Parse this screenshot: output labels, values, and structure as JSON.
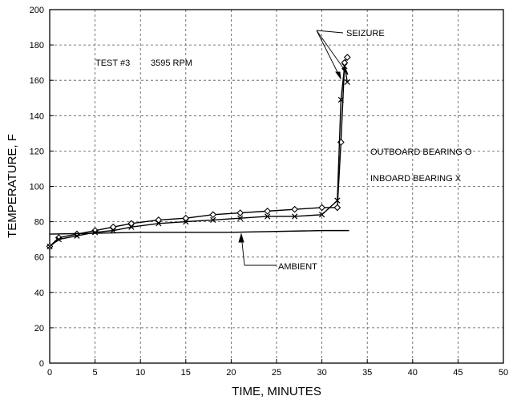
{
  "chart_data": {
    "type": "line",
    "title": "",
    "xlabel": "TIME, MINUTES",
    "ylabel": "TEMPERATURE, F",
    "xlim": [
      0,
      50
    ],
    "ylim": [
      0,
      200
    ],
    "xticks": [
      0,
      5,
      10,
      15,
      20,
      25,
      30,
      35,
      40,
      45,
      50
    ],
    "yticks": [
      0,
      20,
      40,
      60,
      80,
      100,
      120,
      140,
      160,
      180,
      200
    ],
    "grid": true,
    "annotations": {
      "test": "TEST #3",
      "rpm": "3595 RPM",
      "seizure": "SEIZURE",
      "ambient": "AMBIENT",
      "outboard": "OUTBOARD BEARING  O",
      "inboard": "INBOARD BEARING  X"
    },
    "series": [
      {
        "name": "OUTBOARD BEARING",
        "marker": "diamond",
        "x": [
          0,
          1,
          3,
          5,
          7,
          9,
          12,
          15,
          18,
          21,
          24,
          27,
          30,
          31.7,
          32.1,
          32.5,
          32.8
        ],
        "y": [
          66,
          71,
          73,
          75,
          77,
          79,
          81,
          82,
          84,
          85,
          86,
          87,
          88,
          88,
          125,
          170,
          173
        ]
      },
      {
        "name": "INBOARD BEARING",
        "marker": "x",
        "x": [
          0,
          1,
          3,
          5,
          7,
          9,
          12,
          15,
          18,
          21,
          24,
          27,
          30,
          31.7,
          32.1,
          32.5,
          32.8
        ],
        "y": [
          66,
          70,
          72,
          74,
          75,
          77,
          79,
          80,
          81,
          82,
          83,
          83,
          84,
          92,
          149,
          168,
          159
        ]
      },
      {
        "name": "AMBIENT",
        "marker": "none",
        "x": [
          0,
          10,
          20,
          30,
          33
        ],
        "y": [
          73,
          74,
          74,
          75,
          75
        ]
      }
    ]
  }
}
